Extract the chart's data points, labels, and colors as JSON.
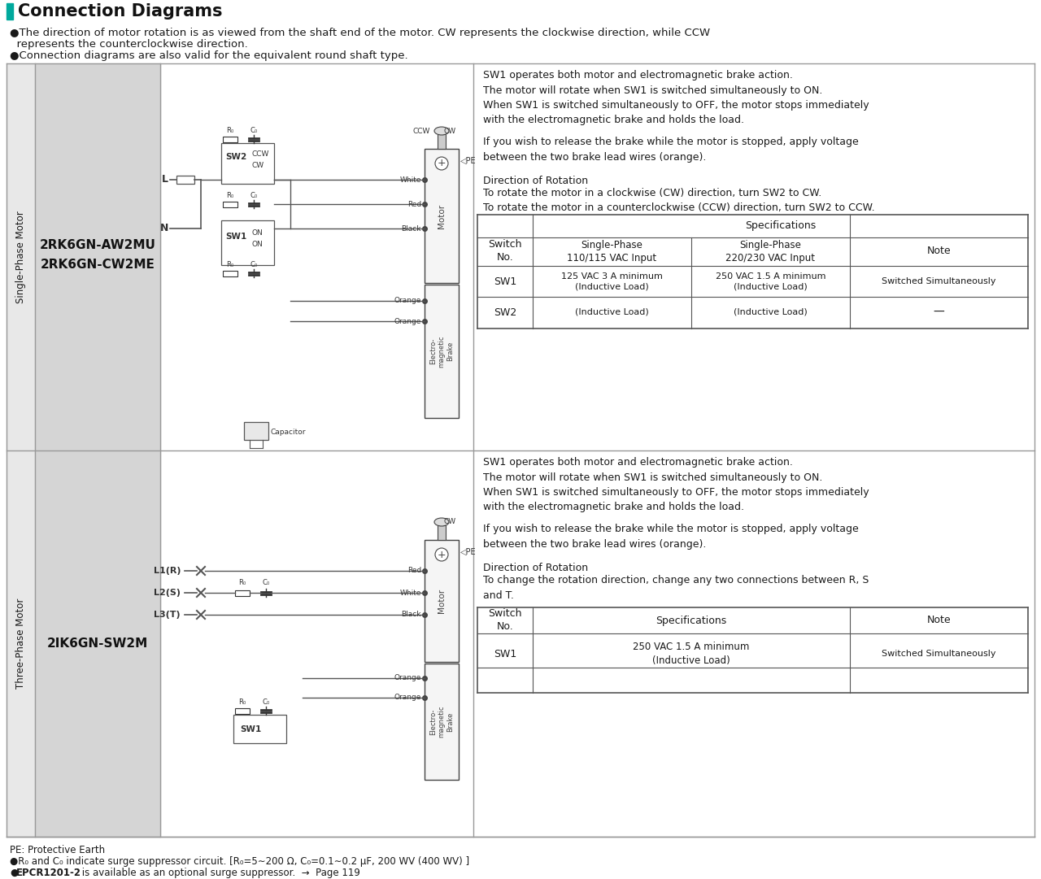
{
  "title": "Connection Diagrams",
  "title_bar_color": "#00a99d",
  "bullet1_line1": "●The direction of motor rotation is as viewed from the shaft end of the motor. CW represents the clockwise direction, while CCW",
  "bullet1_line2": "  represents the counterclockwise direction.",
  "bullet2": "●Connection diagrams are also valid for the equivalent round shaft type.",
  "section1_label": "Single-Phase Motor",
  "section1_model_line1": "2RK6GN-AW2MU",
  "section1_model_line2": "2RK6GN-CW2ME",
  "section2_label": "Three-Phase Motor",
  "section2_model": "2IK6GN-SW2M",
  "s1_desc1": "SW1 operates both motor and electromagnetic brake action.\nThe motor will rotate when SW1 is switched simultaneously to ON.\nWhen SW1 is switched simultaneously to OFF, the motor stops immediately\nwith the electromagnetic brake and holds the load.",
  "s1_desc2": "If you wish to release the brake while the motor is stopped, apply voltage\nbetween the two brake lead wires (orange).",
  "s1_desc3_title": "Direction of Rotation",
  "s1_desc3_body": "To rotate the motor in a clockwise (CW) direction, turn SW2 to CW.\nTo rotate the motor in a counterclockwise (CCW) direction, turn SW2 to CCW.",
  "s2_desc1": "SW1 operates both motor and electromagnetic brake action.\nThe motor will rotate when SW1 is switched simultaneously to ON.\nWhen SW1 is switched simultaneously to OFF, the motor stops immediately\nwith the electromagnetic brake and holds the load.",
  "s2_desc2": "If you wish to release the brake while the motor is stopped, apply voltage\nbetween the two brake lead wires (orange).",
  "s2_desc3_title": "Direction of Rotation",
  "s2_desc3_body": "To change the rotation direction, change any two connections between R, S\nand T.",
  "footer1": "PE: Protective Earth",
  "footer2_prefix": "●R",
  "footer2_main": "0 and C0 indicate surge suppressor circuit. [R0=5~200 Ω, C0=0.1~0.2 μF, 200 WV (400 WV) ]",
  "footer3_bold": "EPCR1201-2",
  "footer3_rest": " is available as an optional surge suppressor.  →  Page 119",
  "bg_color": "#ffffff",
  "gray_light": "#e8e8e8",
  "gray_mid": "#d5d5d5",
  "line_color": "#555555",
  "text_color": "#1a1a1a",
  "border_color": "#999999"
}
